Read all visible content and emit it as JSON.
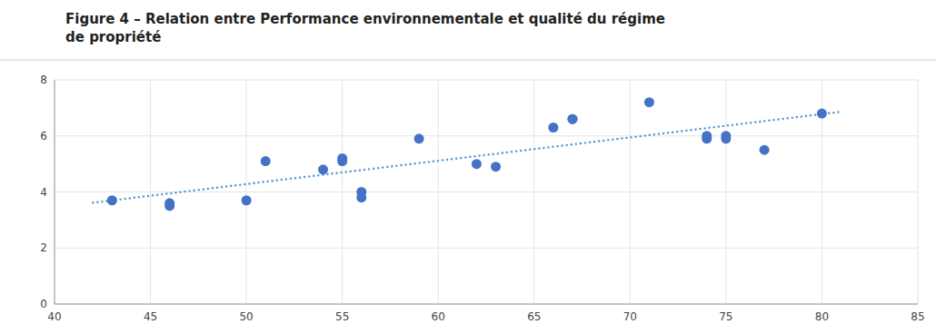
{
  "chart_data": {
    "type": "scatter",
    "title": "Figure 4 – Relation entre Performance environnementale et qualité du régime\nde propriété",
    "series": [
      {
        "type": "scatter",
        "color": "#4472C4",
        "marker": "circle",
        "x": [
          43,
          46,
          46,
          50,
          51,
          54,
          55,
          55,
          56,
          56,
          59,
          62,
          63,
          66,
          67,
          67,
          71,
          74,
          74,
          75,
          75,
          77,
          80
        ],
        "values": [
          3.7,
          3.6,
          3.5,
          3.7,
          5.1,
          4.8,
          5.2,
          5.1,
          3.8,
          4.0,
          5.9,
          5.0,
          4.9,
          6.3,
          6.6,
          6.6,
          7.2,
          5.9,
          6.0,
          6.0,
          5.9,
          5.5,
          6.8
        ]
      },
      {
        "type": "line",
        "color": "#5B9BD5",
        "line_style": "dotted",
        "x": [
          42,
          81
        ],
        "values": [
          3.6154,
          6.8608
        ]
      }
    ],
    "xlim": [
      40,
      85
    ],
    "ylim": [
      0,
      8
    ],
    "xticks": [
      40,
      45,
      50,
      55,
      60,
      65,
      70,
      75,
      80,
      85
    ],
    "yticks": [
      0,
      2,
      4,
      6,
      8
    ],
    "grid": true
  }
}
